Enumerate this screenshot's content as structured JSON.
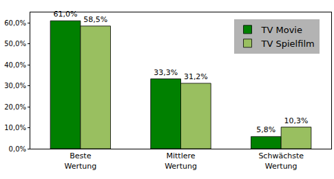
{
  "chart_data": {
    "type": "bar",
    "categories": [
      "Beste Wertung",
      "Mittlere Wertung",
      "Schwächste Wertung"
    ],
    "series": [
      {
        "name": "TV Movie",
        "color": "#008000",
        "values": [
          61.0,
          33.3,
          5.8
        ],
        "value_labels": [
          "61,0%",
          "33,3%",
          "5,8%"
        ]
      },
      {
        "name": "TV Spielfilm",
        "color": "#99bf60",
        "values": [
          58.5,
          31.2,
          10.3
        ],
        "value_labels": [
          "58,5%",
          "31,2%",
          "10,3%"
        ]
      }
    ],
    "ylim": [
      0,
      65
    ],
    "yticks": [
      {
        "value": 0,
        "label": "0,0%"
      },
      {
        "value": 10,
        "label": "10,0%"
      },
      {
        "value": 20,
        "label": "20,0%"
      },
      {
        "value": 30,
        "label": "30,0%"
      },
      {
        "value": 40,
        "label": "40,0%"
      },
      {
        "value": 50,
        "label": "50,0%"
      },
      {
        "value": 60,
        "label": "60,0%"
      }
    ],
    "grid": false,
    "legend": "upper right",
    "data_labels": true
  }
}
